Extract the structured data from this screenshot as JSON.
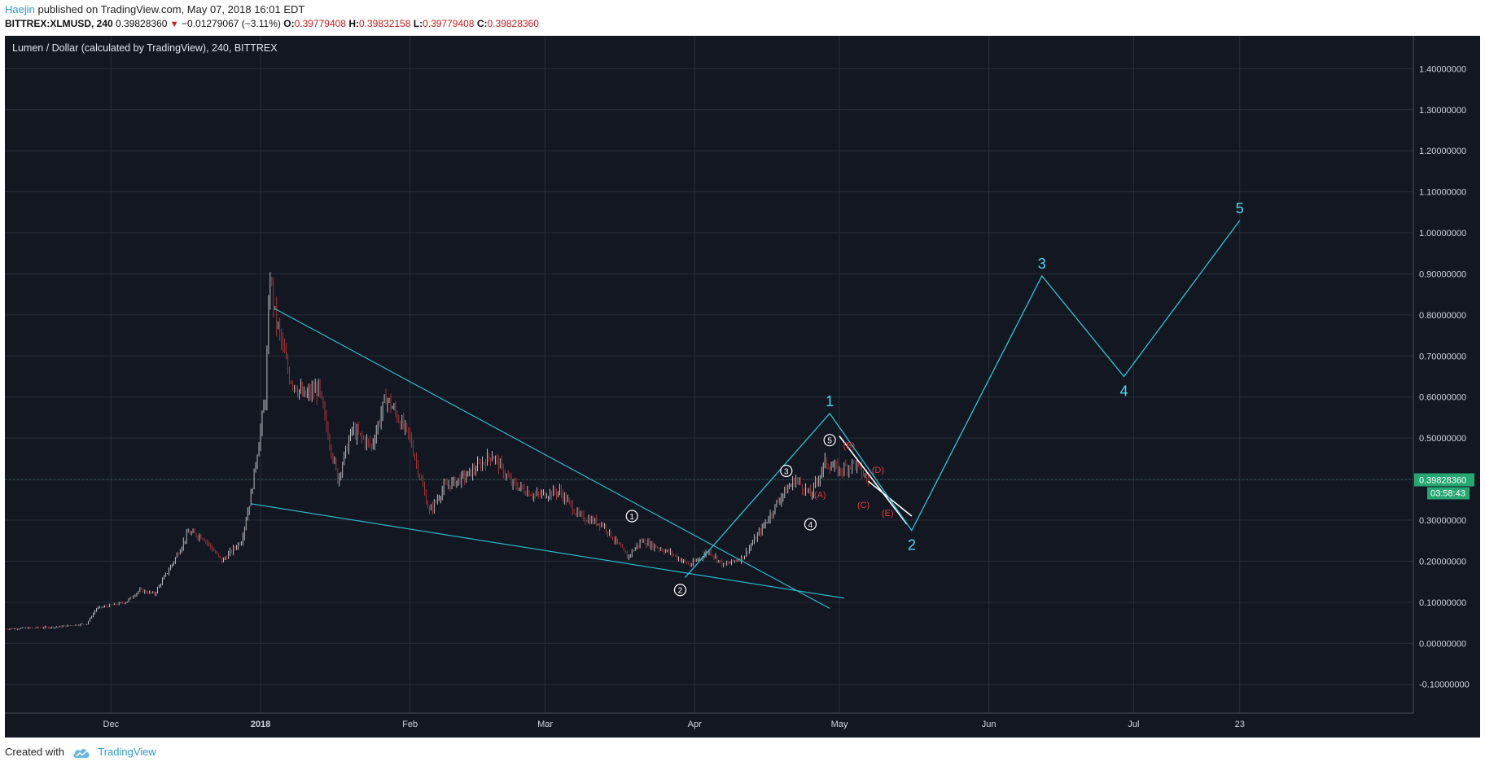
{
  "header": {
    "author": "Haejin",
    "published_text": "published on TradingView.com, May 07, 2018 16:01 EDT",
    "symbol": "BITTREX:XLMUSD, 240",
    "last": "0.39828360",
    "change": "−0.01279067 (−3.11%)",
    "o_label": "O:",
    "o_value": "0.39779408",
    "h_label": "H:",
    "h_value": "0.39832158",
    "l_label": "L:",
    "l_value": "0.39779408",
    "c_label": "C:",
    "c_value": "0.39828360"
  },
  "footer": {
    "created_with": "Created with",
    "brand": "TradingView"
  },
  "colors": {
    "background": "#131722",
    "grid": "#2a2e39",
    "wave": "#2ec4d6",
    "label_cyan": "#4fd6f0",
    "subwave_red": "#e03b3b",
    "up_candle": "#e6e6e6",
    "down_candle": "#c43c3c",
    "price_tag": "#26a671"
  },
  "chart_data": {
    "type": "candlestick",
    "title": "Lumen / Dollar (calculated by TradingView), 240, BITTREX",
    "x_tick_labels": [
      "Dec",
      "2018",
      "Feb",
      "Mar",
      "Apr",
      "May",
      "Jun",
      "Jul",
      "23"
    ],
    "x_ticks": [
      "2017-12-01",
      "2018-01-01",
      "2018-02-01",
      "2018-03-01",
      "2018-04-01",
      "2018-05-01",
      "2018-06-01",
      "2018-07-01",
      "2018-07-23"
    ],
    "x_range": [
      "2017-11-09",
      "2018-08-28"
    ],
    "ylim": [
      -0.17,
      1.48
    ],
    "y_ticks": [
      "1.40000000",
      "1.30000000",
      "1.20000000",
      "1.10000000",
      "1.00000000",
      "0.90000000",
      "0.80000000",
      "0.70000000",
      "0.60000000",
      "0.50000000",
      "0.40000000",
      "0.30000000",
      "0.20000000",
      "0.10000000",
      "0.00000000",
      "-0.10000000"
    ],
    "grid": true,
    "price_series": [
      [
        "2017-11-09",
        0.035
      ],
      [
        "2017-11-20",
        0.04
      ],
      [
        "2017-11-26",
        0.048
      ],
      [
        "2017-11-28",
        0.085
      ],
      [
        "2017-12-04",
        0.1
      ],
      [
        "2017-12-07",
        0.13
      ],
      [
        "2017-12-10",
        0.12
      ],
      [
        "2017-12-14",
        0.2
      ],
      [
        "2017-12-17",
        0.27
      ],
      [
        "2017-12-20",
        0.26
      ],
      [
        "2017-12-24",
        0.2
      ],
      [
        "2017-12-28",
        0.25
      ],
      [
        "2017-12-30",
        0.36
      ],
      [
        "2018-01-02",
        0.6
      ],
      [
        "2018-01-03",
        0.9
      ],
      [
        "2018-01-04",
        0.8
      ],
      [
        "2018-01-07",
        0.65
      ],
      [
        "2018-01-10",
        0.6
      ],
      [
        "2018-01-13",
        0.62
      ],
      [
        "2018-01-17",
        0.4
      ],
      [
        "2018-01-20",
        0.52
      ],
      [
        "2018-01-24",
        0.48
      ],
      [
        "2018-01-27",
        0.6
      ],
      [
        "2018-02-01",
        0.5
      ],
      [
        "2018-02-05",
        0.32
      ],
      [
        "2018-02-08",
        0.38
      ],
      [
        "2018-02-13",
        0.41
      ],
      [
        "2018-02-18",
        0.46
      ],
      [
        "2018-02-22",
        0.39
      ],
      [
        "2018-02-27",
        0.36
      ],
      [
        "2018-03-04",
        0.37
      ],
      [
        "2018-03-08",
        0.31
      ],
      [
        "2018-03-13",
        0.29
      ],
      [
        "2018-03-18",
        0.21
      ],
      [
        "2018-03-21",
        0.25
      ],
      [
        "2018-03-27",
        0.22
      ],
      [
        "2018-03-31",
        0.19
      ],
      [
        "2018-04-04",
        0.225
      ],
      [
        "2018-04-07",
        0.19
      ],
      [
        "2018-04-11",
        0.21
      ],
      [
        "2018-04-15",
        0.28
      ],
      [
        "2018-04-19",
        0.36
      ],
      [
        "2018-04-22",
        0.4
      ],
      [
        "2018-04-25",
        0.36
      ],
      [
        "2018-04-28",
        0.44
      ],
      [
        "2018-05-01",
        0.42
      ],
      [
        "2018-05-04",
        0.44
      ],
      [
        "2018-05-07",
        0.398
      ]
    ],
    "last_price": "0.39828360",
    "countdown": "03:58:43",
    "trendlines": [
      {
        "from": [
          "2018-01-04",
          0.815
        ],
        "to": [
          "2018-04-29",
          0.085
        ]
      },
      {
        "from": [
          "2017-12-30",
          0.34
        ],
        "to": [
          "2018-05-02",
          0.11
        ]
      },
      {
        "from": [
          "2018-05-01",
          0.505
        ],
        "to": [
          "2018-05-15",
          0.29
        ]
      },
      {
        "from": [
          "2018-05-07",
          0.395
        ],
        "to": [
          "2018-05-16",
          0.31
        ]
      }
    ],
    "projected_wave": {
      "points": [
        [
          "2018-03-30",
          0.16
        ],
        [
          "2018-04-29",
          0.56
        ],
        [
          "2018-05-16",
          0.275
        ],
        [
          "2018-06-12",
          0.895
        ],
        [
          "2018-06-29",
          0.65
        ],
        [
          "2018-07-23",
          1.03
        ]
      ],
      "labels": [
        "1",
        "2",
        "3",
        "4",
        "5"
      ]
    },
    "subwave_labels": [
      {
        "text": "1",
        "at": [
          "2018-03-19",
          0.31
        ]
      },
      {
        "text": "2",
        "at": [
          "2018-03-29",
          0.13
        ]
      },
      {
        "text": "3",
        "at": [
          "2018-04-20",
          0.42
        ]
      },
      {
        "text": "4",
        "at": [
          "2018-04-25",
          0.29
        ]
      },
      {
        "text": "5",
        "at": [
          "2018-04-29",
          0.495
        ]
      }
    ],
    "abcde_labels": [
      {
        "text": "(A)",
        "at": [
          "2018-04-27",
          0.355
        ]
      },
      {
        "text": "(B)",
        "at": [
          "2018-05-03",
          0.475
        ]
      },
      {
        "text": "(C)",
        "at": [
          "2018-05-06",
          0.33
        ]
      },
      {
        "text": "(D)",
        "at": [
          "2018-05-09",
          0.415
        ]
      },
      {
        "text": "(E)",
        "at": [
          "2018-05-11",
          0.31
        ]
      }
    ]
  }
}
